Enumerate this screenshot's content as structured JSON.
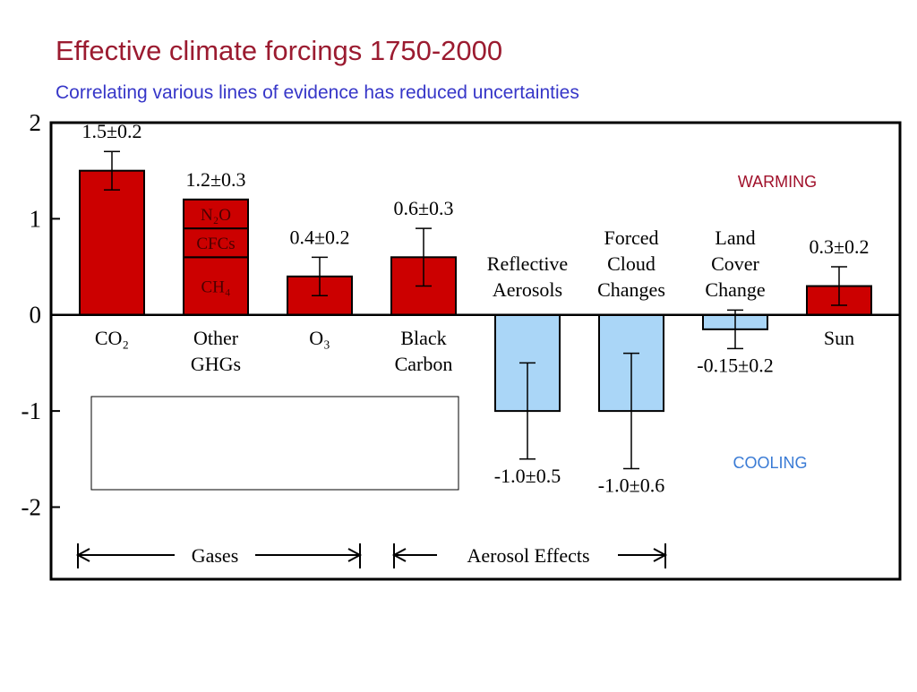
{
  "chart_data": {
    "type": "bar",
    "title": "Effective climate forcings 1750-2000",
    "subtitle": "Correlating various lines of evidence has reduced uncertainties",
    "categories": [
      "CO₂",
      "Other GHGs",
      "O₃",
      "Black Carbon",
      "Reflective Aerosols",
      "Forced Cloud Changes",
      "Land Cover Change",
      "Sun"
    ],
    "values": [
      1.5,
      1.2,
      0.4,
      0.6,
      -1.0,
      -1.0,
      -0.15,
      0.3
    ],
    "errors": [
      0.2,
      null,
      0.2,
      0.3,
      0.5,
      0.6,
      0.2,
      0.2
    ],
    "value_labels": [
      "1.5±0.2",
      "1.2±0.3",
      "0.4±0.2",
      "0.6±0.3",
      "-1.0±0.5",
      "-1.0±0.6",
      "-0.15±0.2",
      "0.3±0.2"
    ],
    "colors": [
      "#cc0000",
      "#cc0000",
      "#cc0000",
      "#cc0000",
      "#aad6f7",
      "#aad6f7",
      "#aad6f7",
      "#cc0000"
    ],
    "segments": [
      {
        "name": "CH₄",
        "value": 0.6
      },
      {
        "name": "CFCs",
        "value": 0.3
      },
      {
        "name": "N₂O",
        "value": 0.3
      }
    ],
    "ylim": [
      -2.75,
      2
    ],
    "yticks": [
      -2,
      -1,
      0,
      1,
      2
    ],
    "annotations": [
      "WARMING",
      "COOLING",
      "Gases",
      "Aerosol Effects"
    ]
  }
}
